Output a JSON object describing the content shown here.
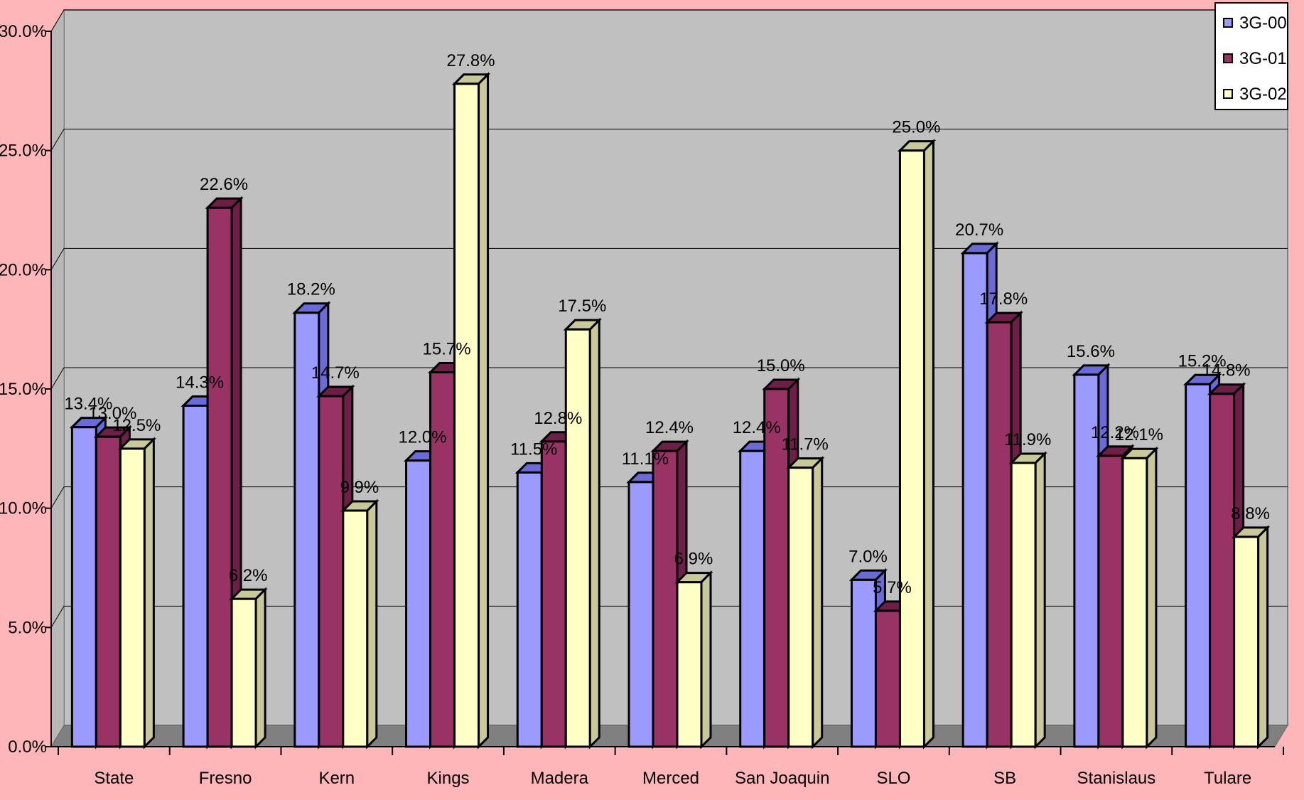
{
  "chart_data": {
    "type": "bar",
    "title": "",
    "xlabel": "",
    "ylabel": "",
    "ylim": [
      0,
      30
    ],
    "y_ticks": [
      "0.0%",
      "5.0%",
      "10.0%",
      "15.0%",
      "20.0%",
      "25.0%",
      "30.0%"
    ],
    "categories": [
      "State",
      "Fresno",
      "Kern",
      "Kings",
      "Madera",
      "Merced",
      "San Joaquin",
      "SLO",
      "SB",
      "Stanislaus",
      "Tulare"
    ],
    "series": [
      {
        "name": "3G-00",
        "color": "#9b9bff",
        "top_color": "#6a6ad8",
        "values": [
          13.4,
          14.3,
          18.2,
          12.0,
          11.5,
          11.1,
          12.4,
          7.0,
          20.7,
          15.6,
          15.2
        ],
        "labels": [
          "13.4%",
          "14.3%",
          "18.2%",
          "12.0%",
          "11.5%",
          "11.1%",
          "12.4%",
          "7.0%",
          "20.7%",
          "15.6%",
          "15.2%"
        ]
      },
      {
        "name": "3G-01",
        "color": "#993366",
        "top_color": "#6e1f48",
        "values": [
          13.0,
          22.6,
          14.7,
          15.7,
          12.8,
          12.4,
          15.0,
          5.7,
          17.8,
          12.2,
          14.8
        ],
        "labels": [
          "13.0%",
          "22.6%",
          "14.7%",
          "15.7%",
          "12.8%",
          "12.4%",
          "15.0%",
          "5.7%",
          "17.8%",
          "12.2%",
          "14.8%"
        ]
      },
      {
        "name": "3G-02",
        "color": "#ffffc6",
        "top_color": "#c8c89a",
        "values": [
          12.5,
          6.2,
          9.9,
          27.8,
          17.5,
          6.9,
          11.7,
          25.0,
          11.9,
          12.1,
          8.8
        ],
        "labels": [
          "12.5%",
          "6.2%",
          "9.9%",
          "27.8%",
          "17.5%",
          "6.9%",
          "11.7%",
          "25.0%",
          "11.9%",
          "12.1%",
          "8.8%"
        ]
      }
    ],
    "legend": "top-right",
    "grid": true,
    "plot_background": "#c0c0c0",
    "floor_color": "#808080",
    "page_background": "#ffb6b9"
  }
}
